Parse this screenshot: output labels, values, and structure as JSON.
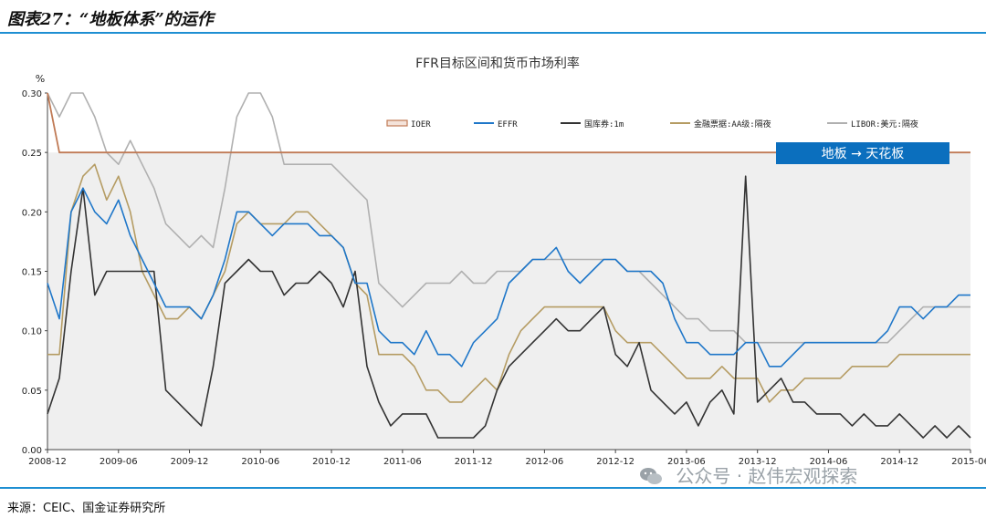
{
  "header": {
    "title": "图表27：“地板体系”的运作"
  },
  "footer": {
    "source": "来源：CEIC、国金证券研究所",
    "watermark": "公众号 · 赵伟宏观探索"
  },
  "annotation": {
    "label": "地板 → 天花板",
    "color": "#0b6fbe"
  },
  "chart_data": {
    "type": "line",
    "title": "FFR目标区间和货币市场利率",
    "ylabel": "%",
    "ylim": [
      0,
      0.3
    ],
    "yticks": [
      "0.30",
      "0.25",
      "0.20",
      "0.15",
      "0.10",
      "0.05",
      "0.00"
    ],
    "grid": false,
    "shaded_band": [
      0,
      0.25
    ],
    "legend_position": "top",
    "x": [
      "2008-12",
      "2009-01",
      "2009-02",
      "2009-03",
      "2009-04",
      "2009-05",
      "2009-06",
      "2009-07",
      "2009-08",
      "2009-09",
      "2009-10",
      "2009-11",
      "2009-12",
      "2010-01",
      "2010-02",
      "2010-03",
      "2010-04",
      "2010-05",
      "2010-06",
      "2010-07",
      "2010-08",
      "2010-09",
      "2010-10",
      "2010-11",
      "2010-12",
      "2011-01",
      "2011-02",
      "2011-03",
      "2011-04",
      "2011-05",
      "2011-06",
      "2011-07",
      "2011-08",
      "2011-09",
      "2011-10",
      "2011-11",
      "2011-12",
      "2012-01",
      "2012-02",
      "2012-03",
      "2012-04",
      "2012-05",
      "2012-06",
      "2012-07",
      "2012-08",
      "2012-09",
      "2012-10",
      "2012-11",
      "2012-12",
      "2013-01",
      "2013-02",
      "2013-03",
      "2013-04",
      "2013-05",
      "2013-06",
      "2013-07",
      "2013-08",
      "2013-09",
      "2013-10",
      "2013-11",
      "2013-12",
      "2014-01",
      "2014-02",
      "2014-03",
      "2014-04",
      "2014-05",
      "2014-06",
      "2014-07",
      "2014-08",
      "2014-09",
      "2014-10",
      "2014-11",
      "2014-12",
      "2015-01",
      "2015-02",
      "2015-03",
      "2015-04",
      "2015-05",
      "2015-06"
    ],
    "xticks": [
      "2008-12",
      "2009-06",
      "2009-12",
      "2010-06",
      "2010-12",
      "2011-06",
      "2011-12",
      "2012-06",
      "2012-12",
      "2013-06",
      "2013-12",
      "2014-06",
      "2014-12",
      "2015-06"
    ],
    "series": [
      {
        "name": "IOER",
        "color": "#c07a55",
        "values": [
          0.3,
          0.25,
          0.25,
          0.25,
          0.25,
          0.25,
          0.25,
          0.25,
          0.25,
          0.25,
          0.25,
          0.25,
          0.25,
          0.25,
          0.25,
          0.25,
          0.25,
          0.25,
          0.25,
          0.25,
          0.25,
          0.25,
          0.25,
          0.25,
          0.25,
          0.25,
          0.25,
          0.25,
          0.25,
          0.25,
          0.25,
          0.25,
          0.25,
          0.25,
          0.25,
          0.25,
          0.25,
          0.25,
          0.25,
          0.25,
          0.25,
          0.25,
          0.25,
          0.25,
          0.25,
          0.25,
          0.25,
          0.25,
          0.25,
          0.25,
          0.25,
          0.25,
          0.25,
          0.25,
          0.25,
          0.25,
          0.25,
          0.25,
          0.25,
          0.25,
          0.25,
          0.25,
          0.25,
          0.25,
          0.25,
          0.25,
          0.25,
          0.25,
          0.25,
          0.25,
          0.25,
          0.25,
          0.25,
          0.25,
          0.25,
          0.25,
          0.25,
          0.25,
          0.25
        ]
      },
      {
        "name": "EFFR",
        "color": "#1f77c9",
        "values": [
          0.14,
          0.11,
          0.2,
          0.22,
          0.2,
          0.19,
          0.21,
          0.18,
          0.16,
          0.14,
          0.12,
          0.12,
          0.12,
          0.11,
          0.13,
          0.16,
          0.2,
          0.2,
          0.19,
          0.18,
          0.19,
          0.19,
          0.19,
          0.18,
          0.18,
          0.17,
          0.14,
          0.14,
          0.1,
          0.09,
          0.09,
          0.08,
          0.1,
          0.08,
          0.08,
          0.07,
          0.09,
          0.1,
          0.11,
          0.14,
          0.15,
          0.16,
          0.16,
          0.17,
          0.15,
          0.14,
          0.15,
          0.16,
          0.16,
          0.15,
          0.15,
          0.15,
          0.14,
          0.11,
          0.09,
          0.09,
          0.08,
          0.08,
          0.08,
          0.09,
          0.09,
          0.07,
          0.07,
          0.08,
          0.09,
          0.09,
          0.09,
          0.09,
          0.09,
          0.09,
          0.09,
          0.1,
          0.12,
          0.12,
          0.11,
          0.12,
          0.12,
          0.13,
          0.13
        ]
      },
      {
        "name": "国库券:1m",
        "color": "#333333",
        "values": [
          0.03,
          0.06,
          0.15,
          0.22,
          0.13,
          0.15,
          0.15,
          0.15,
          0.15,
          0.15,
          0.05,
          0.04,
          0.03,
          0.02,
          0.07,
          0.14,
          0.15,
          0.16,
          0.15,
          0.15,
          0.13,
          0.14,
          0.14,
          0.15,
          0.14,
          0.12,
          0.15,
          0.07,
          0.04,
          0.02,
          0.03,
          0.03,
          0.03,
          0.01,
          0.01,
          0.01,
          0.01,
          0.02,
          0.05,
          0.07,
          0.08,
          0.09,
          0.1,
          0.11,
          0.1,
          0.1,
          0.11,
          0.12,
          0.08,
          0.07,
          0.09,
          0.05,
          0.04,
          0.03,
          0.04,
          0.02,
          0.04,
          0.05,
          0.03,
          0.23,
          0.04,
          0.05,
          0.06,
          0.04,
          0.04,
          0.03,
          0.03,
          0.03,
          0.02,
          0.03,
          0.02,
          0.02,
          0.03,
          0.02,
          0.01,
          0.02,
          0.01,
          0.02,
          0.01
        ]
      },
      {
        "name": "金融票据:AA级:隔夜",
        "color": "#b59c63",
        "values": [
          0.08,
          0.08,
          0.2,
          0.23,
          0.24,
          0.21,
          0.23,
          0.2,
          0.15,
          0.13,
          0.11,
          0.11,
          0.12,
          0.11,
          0.13,
          0.15,
          0.19,
          0.2,
          0.19,
          0.19,
          0.19,
          0.2,
          0.2,
          0.19,
          0.18,
          0.17,
          0.14,
          0.13,
          0.08,
          0.08,
          0.08,
          0.07,
          0.05,
          0.05,
          0.04,
          0.04,
          0.05,
          0.06,
          0.05,
          0.08,
          0.1,
          0.11,
          0.12,
          0.12,
          0.12,
          0.12,
          0.12,
          0.12,
          0.1,
          0.09,
          0.09,
          0.09,
          0.08,
          0.07,
          0.06,
          0.06,
          0.06,
          0.07,
          0.06,
          0.06,
          0.06,
          0.04,
          0.05,
          0.05,
          0.06,
          0.06,
          0.06,
          0.06,
          0.07,
          0.07,
          0.07,
          0.07,
          0.08,
          0.08,
          0.08,
          0.08,
          0.08,
          0.08,
          0.08
        ]
      },
      {
        "name": "LIBOR:美元:隔夜",
        "color": "#b0b0b0",
        "values": [
          0.3,
          0.28,
          0.3,
          0.31,
          0.28,
          0.25,
          0.24,
          0.26,
          0.24,
          0.22,
          0.19,
          0.18,
          0.17,
          0.18,
          0.17,
          0.22,
          0.28,
          0.3,
          0.3,
          0.28,
          0.24,
          0.24,
          0.24,
          0.24,
          0.24,
          0.23,
          0.22,
          0.21,
          0.14,
          0.13,
          0.12,
          0.13,
          0.14,
          0.14,
          0.14,
          0.15,
          0.14,
          0.14,
          0.15,
          0.15,
          0.15,
          0.16,
          0.16,
          0.16,
          0.16,
          0.16,
          0.16,
          0.16,
          0.16,
          0.15,
          0.15,
          0.14,
          0.13,
          0.12,
          0.11,
          0.11,
          0.1,
          0.1,
          0.1,
          0.09,
          0.09,
          0.09,
          0.09,
          0.09,
          0.09,
          0.09,
          0.09,
          0.09,
          0.09,
          0.09,
          0.09,
          0.09,
          0.1,
          0.11,
          0.12,
          0.12,
          0.12,
          0.12,
          0.12
        ]
      }
    ]
  }
}
